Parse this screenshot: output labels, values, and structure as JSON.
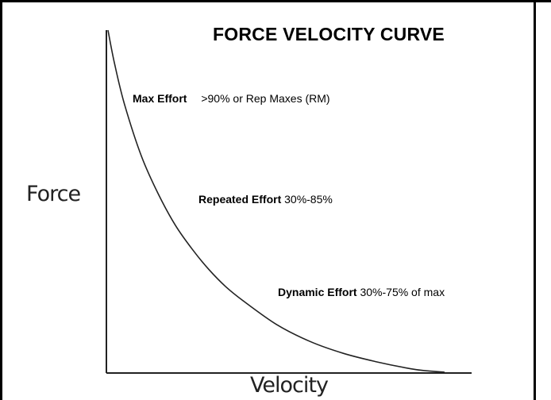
{
  "chart_data": {
    "type": "line",
    "title": "FORCE VELOCITY CURVE",
    "xlabel": "Velocity",
    "ylabel": "Force",
    "grid": false,
    "legend": "none",
    "series": [
      {
        "x": [
          0.0,
          0.02,
          0.05,
          0.1,
          0.15,
          0.2,
          0.25,
          0.3,
          0.35,
          0.4,
          0.5,
          0.6,
          0.7,
          0.8,
          0.9,
          0.95,
          1.0
        ],
        "y": [
          1.0,
          0.9,
          0.78,
          0.63,
          0.52,
          0.43,
          0.36,
          0.3,
          0.25,
          0.21,
          0.14,
          0.09,
          0.055,
          0.03,
          0.01,
          0.004,
          0.0
        ],
        "color": "#222222"
      }
    ],
    "annotations": [
      {
        "bold": "Max Effort",
        "text": ">90% or Rep Maxes (RM)"
      },
      {
        "bold": "Repeated Effort",
        "text": "30%-85%"
      },
      {
        "bold": "Dynamic Effort",
        "text": "30%-75% of max"
      }
    ]
  }
}
